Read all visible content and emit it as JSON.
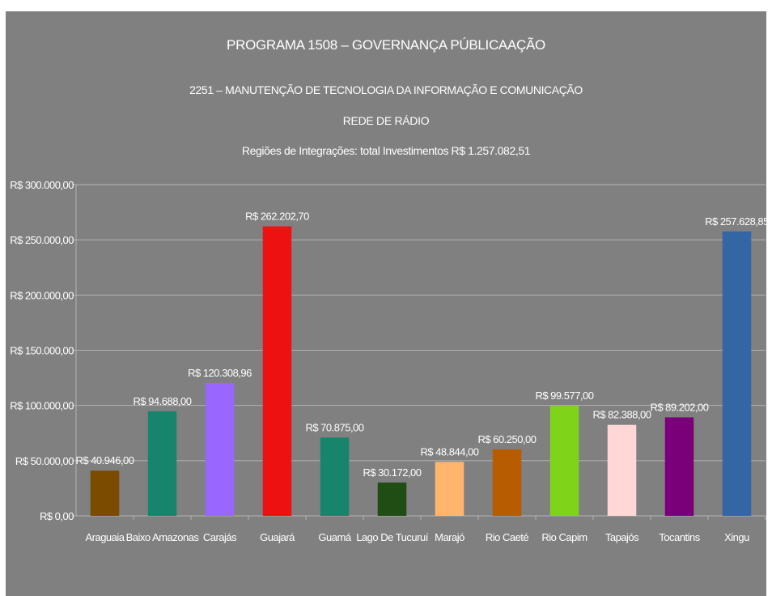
{
  "chart_data": {
    "type": "bar",
    "title": "PROGRAMA 1508  –  GOVERNANÇA PÚBLICAAÇÃO",
    "subtitles": [
      "2251 – MANUTENÇÃO DE TECNOLOGIA DA INFORMAÇÃO E COMUNICAÇÃO",
      "REDE DE RÁDIO",
      "Regiões de Integrações: total Investimentos  R$ 1.257.082,51"
    ],
    "xlabel": "",
    "ylabel": "",
    "ylim": [
      0,
      300000
    ],
    "y_ticks": [
      0,
      50000,
      100000,
      150000,
      200000,
      250000,
      300000
    ],
    "y_tick_labels": [
      "R$ 0,00",
      "R$ 50.000,00",
      "R$ 100.000,00",
      "R$ 150.000,00",
      "R$ 200.000,00",
      "R$ 250.000,00",
      "R$ 300.000,00"
    ],
    "grid": true,
    "legend": "none",
    "categories": [
      "Araguaia",
      "Baixo Amazonas",
      "Carajás",
      "Guajará",
      "Guamá",
      "Lago De Tucuruí",
      "Marajó",
      "Rio Caeté",
      "Rio Capim",
      "Tapajós",
      "Tocantins",
      "Xingu"
    ],
    "values": [
      40946.0,
      94688.0,
      120308.96,
      262202.7,
      70875.0,
      30172.0,
      48844.0,
      60250.0,
      99577.0,
      82388.0,
      89202.0,
      257628.85
    ],
    "value_labels": [
      "R$ 40.946,00",
      "R$ 94.688,00",
      "R$ 120.308,96",
      "R$ 262.202,70",
      "R$ 70.875,00",
      "R$ 30.172,00",
      "R$ 48.844,00",
      "R$ 60.250,00",
      "R$ 99.577,00",
      "R$ 82.388,00",
      "R$ 89.202,00",
      "R$ 257.628,85"
    ],
    "colors": [
      "#7b4b00",
      "#17856b",
      "#9966ff",
      "#ee1111",
      "#17856b",
      "#1f4d13",
      "#ffb66c",
      "#b85c00",
      "#7fd41a",
      "#ffd7d7",
      "#7a0079",
      "#3465a4"
    ],
    "background_color": "#808080",
    "text_color": "#ffffff",
    "grid_color": "#b3b3b3"
  }
}
